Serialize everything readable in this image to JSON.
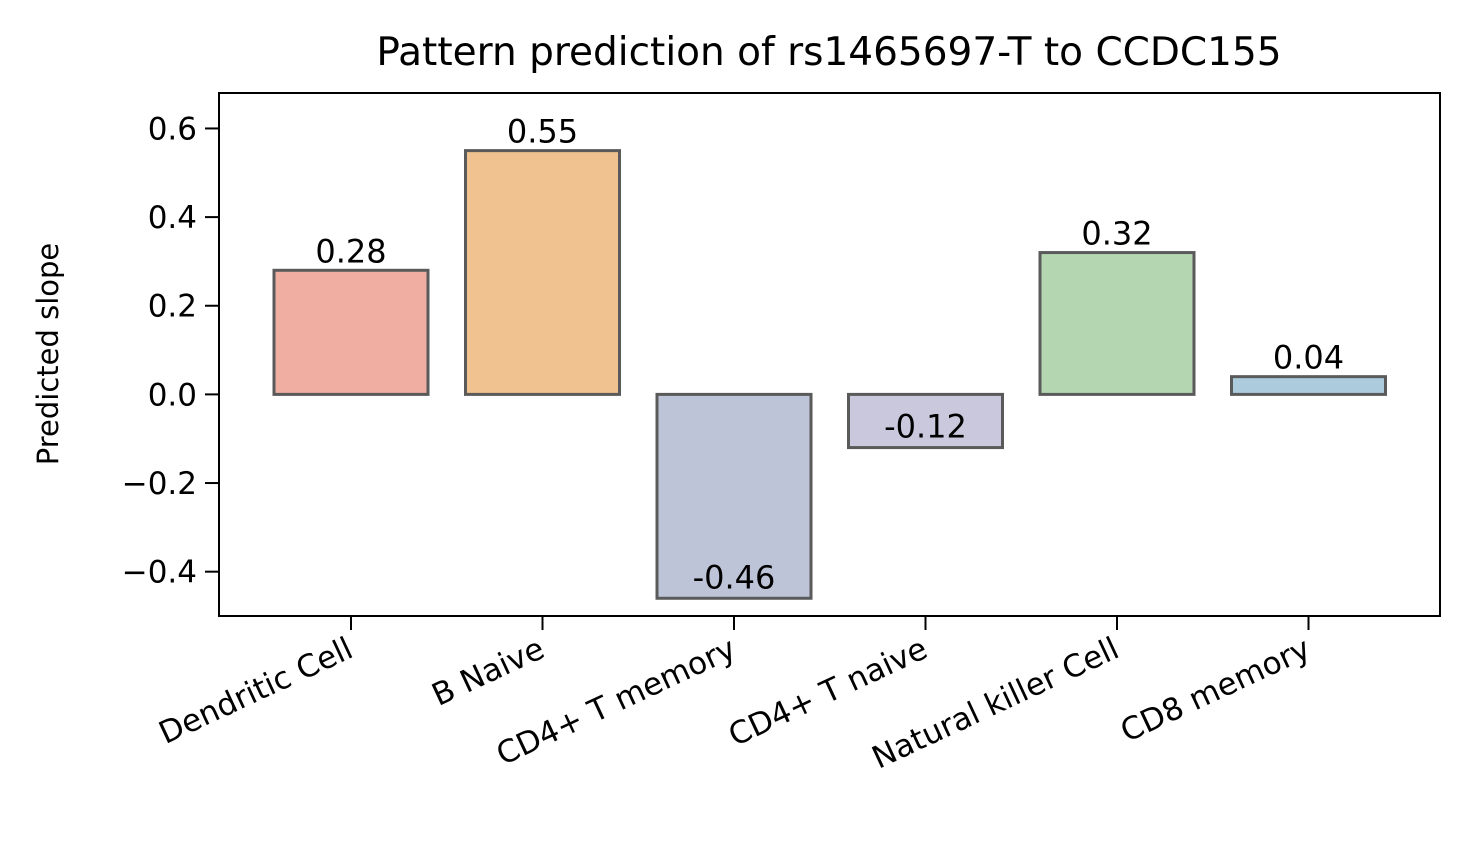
{
  "chart_data": {
    "type": "bar",
    "title": "Pattern prediction of rs1465697-T to CCDC155",
    "xlabel": "",
    "ylabel": "Predicted slope",
    "categories": [
      "Dendritic Cell",
      "B Naive",
      "CD4+ T memory",
      "CD4+ T naive",
      "Natural killer Cell",
      "CD8 memory"
    ],
    "values": [
      0.28,
      0.55,
      -0.46,
      -0.12,
      0.32,
      0.04
    ],
    "value_labels": [
      "0.28",
      "0.55",
      "-0.46",
      "-0.12",
      "0.32",
      "0.04"
    ],
    "colors": [
      "#efaea1",
      "#efc28f",
      "#bec4d7",
      "#c9c8dc",
      "#b4d7b2",
      "#acccde"
    ],
    "edge_color": "#5a5a5a",
    "ylim": [
      -0.5,
      0.68
    ],
    "yticks": [
      -0.4,
      -0.2,
      0.0,
      0.2,
      0.4,
      0.6
    ],
    "ytick_labels": [
      "−0.4",
      "−0.2",
      "0.0",
      "0.2",
      "0.4",
      "0.6"
    ],
    "grid": false,
    "legend": "none"
  }
}
